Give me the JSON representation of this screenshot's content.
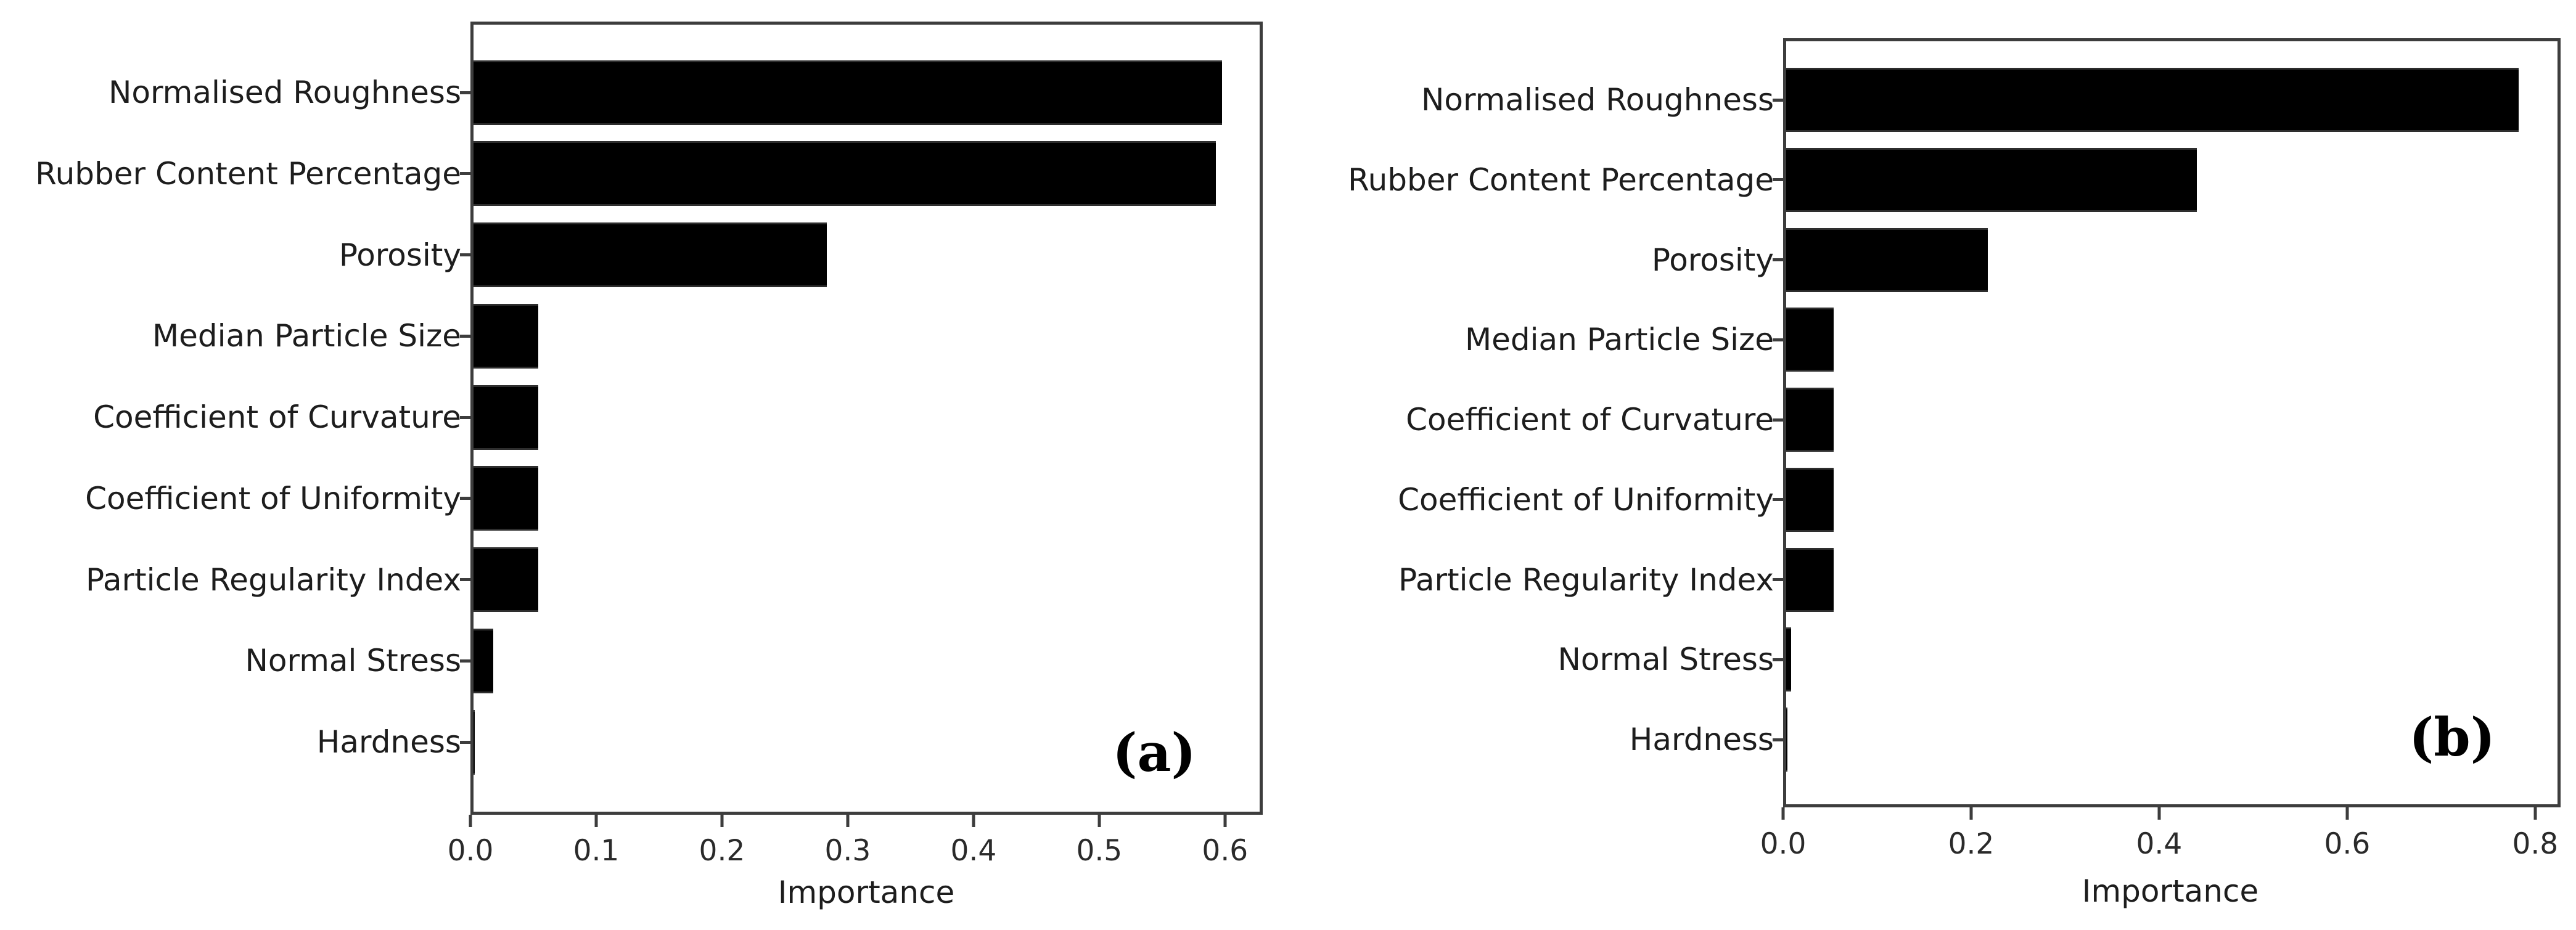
{
  "figure": {
    "background_color": "#ffffff",
    "bar_color": "#000000",
    "axis_color": "#3d3d3d",
    "text_color": "#1d1d1d"
  },
  "chart_data": [
    {
      "type": "bar",
      "orientation": "horizontal",
      "panel_label": "(a)",
      "xlabel": "Importance",
      "categories": [
        "Normalised Roughness",
        "Rubber Content Percentage",
        "Porosity",
        "Median Particle Size",
        "Coefficient of Curvature",
        "Coefficient of Uniformity",
        "Particle Regularity Index",
        "Normal Stress",
        "Hardness"
      ],
      "values": [
        0.6,
        0.595,
        0.283,
        0.052,
        0.052,
        0.052,
        0.052,
        0.016,
        0.001
      ],
      "xticks": [
        "0.0",
        "0.1",
        "0.2",
        "0.3",
        "0.4",
        "0.5",
        "0.6"
      ],
      "xtick_values": [
        0.0,
        0.1,
        0.2,
        0.3,
        0.4,
        0.5,
        0.6
      ],
      "xlim": [
        0,
        0.63
      ],
      "grid": false,
      "legend": "none",
      "bar_color": "#000000"
    },
    {
      "type": "bar",
      "orientation": "horizontal",
      "panel_label": "(b)",
      "xlabel": "Importance",
      "categories": [
        "Normalised Roughness",
        "Rubber Content Percentage",
        "Porosity",
        "Median Particle Size",
        "Coefficient of Curvature",
        "Coefficient of Uniformity",
        "Particle Regularity Index",
        "Normal Stress",
        "Hardness"
      ],
      "values": [
        0.785,
        0.44,
        0.216,
        0.051,
        0.051,
        0.051,
        0.051,
        0.005,
        0.001
      ],
      "xticks": [
        "0.0",
        "0.2",
        "0.4",
        "0.6",
        "0.8"
      ],
      "xtick_values": [
        0.0,
        0.2,
        0.4,
        0.6,
        0.8
      ],
      "xlim": [
        0,
        0.827
      ],
      "grid": false,
      "legend": "none",
      "bar_color": "#000000"
    }
  ]
}
